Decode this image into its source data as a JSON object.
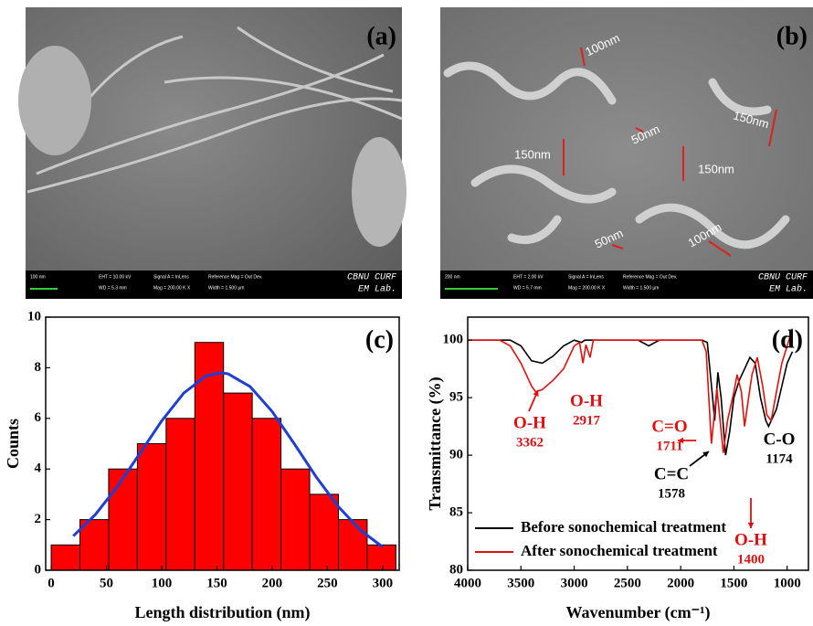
{
  "images": [
    {
      "label": "(a)",
      "scale": "100 nm",
      "info": [
        "EHT = 10.00 kV",
        "WD = 5.3 mm",
        "Signal A = InLens",
        "Mag = 200.00 K X",
        "Reference Mag = Out Dev.",
        "Width = 1.500 µm"
      ],
      "footer": [
        "CBNU CURF",
        "EM Lab."
      ]
    },
    {
      "label": "(b)",
      "scale": "200 nm",
      "info": [
        "EHT = 2.00 kV",
        "WD = 5.7 mm",
        "Signal A = InLens",
        "Mag = 200.00 K X",
        "Reference Mag = Out Dev.",
        "Width = 1.500 µm"
      ],
      "footer": [
        "CBNU CURF",
        "EM Lab."
      ],
      "annotations": [
        "100nm",
        "50nm",
        "150nm",
        "150nm",
        "150nm",
        "50nm",
        "100nm"
      ]
    }
  ],
  "chart_data": [
    {
      "type": "histogram",
      "label": "(c)",
      "x_label": "Length distribution (nm)",
      "y_label": "Counts",
      "bins": [
        0,
        26,
        52,
        78,
        104,
        130,
        156,
        182,
        208,
        234,
        260,
        286,
        312
      ],
      "values": [
        1,
        2,
        4,
        5,
        6,
        9,
        7,
        6,
        4,
        3,
        2,
        1
      ],
      "color": "#ff0000",
      "fit": {
        "color": "#1f3fd0",
        "x": [
          20,
          40,
          60,
          80,
          100,
          120,
          140,
          153,
          160,
          180,
          200,
          220,
          240,
          260,
          280,
          300
        ],
        "values": [
          1.35,
          2.2,
          3.31,
          4.6,
          5.9,
          7.0,
          7.67,
          7.8,
          7.76,
          7.26,
          6.27,
          5.0,
          3.68,
          2.51,
          1.58,
          0.92
        ]
      },
      "xlim": [
        -5,
        315
      ],
      "xticks": [
        0,
        50,
        100,
        150,
        200,
        250,
        300
      ],
      "ylim": [
        0,
        10
      ],
      "yticks": [
        0,
        2,
        4,
        6,
        8,
        10
      ]
    },
    {
      "type": "line",
      "label": "(d)",
      "x_label": "Wavenumber (cm⁻¹)",
      "y_label": "Transmittance (%)",
      "xlim": [
        4000,
        800
      ],
      "xticks": [
        4000,
        3500,
        3000,
        2500,
        2000,
        1500,
        1000
      ],
      "ylim": [
        80,
        102
      ],
      "yticks": [
        80,
        85,
        90,
        95,
        100
      ],
      "legend": "lower left",
      "series": [
        {
          "name": "Before sonochemical treatment",
          "color": "#000000",
          "x": [
            4000,
            3600,
            3500,
            3400,
            3300,
            3200,
            3100,
            3000,
            2930,
            2900,
            2400,
            2300,
            2200,
            1800,
            1750,
            1700,
            1680,
            1650,
            1620,
            1578,
            1540,
            1500,
            1450,
            1400,
            1350,
            1300,
            1250,
            1200,
            1174,
            1100,
            1050,
            1000,
            950
          ],
          "values": [
            100,
            100,
            99.5,
            98.2,
            98,
            98.6,
            99.5,
            100,
            99.8,
            100,
            100,
            99.5,
            100,
            100,
            99.8,
            95,
            93,
            97.2,
            95,
            90,
            92,
            95,
            96.5,
            97.5,
            98.5,
            98,
            95,
            93,
            92.5,
            94,
            96,
            98,
            99
          ]
        },
        {
          "name": "After sonochemical treatment",
          "color": "#e01010",
          "x": [
            4000,
            3700,
            3600,
            3500,
            3400,
            3362,
            3300,
            3200,
            3100,
            3000,
            2950,
            2917,
            2890,
            2850,
            2820,
            1800,
            1760,
            1711,
            1690,
            1660,
            1630,
            1600,
            1560,
            1500,
            1470,
            1430,
            1400,
            1370,
            1330,
            1280,
            1230,
            1190,
            1150,
            1100,
            1050,
            1000,
            950
          ],
          "values": [
            100,
            100,
            99.5,
            98,
            96,
            95.5,
            95.7,
            96.5,
            97.5,
            99.5,
            99.8,
            98,
            99.6,
            98.5,
            100,
            100,
            99,
            91,
            93,
            95.8,
            93,
            90.2,
            93,
            95.5,
            97,
            95.5,
            92.5,
            94.5,
            97,
            98.5,
            96,
            93.5,
            93,
            95.5,
            98,
            99.5,
            101
          ]
        }
      ],
      "annotations": [
        {
          "text": [
            "O-H",
            "3362"
          ],
          "color": "#e01010"
        },
        {
          "text": [
            "O-H",
            "2917"
          ],
          "color": "#e01010"
        },
        {
          "text": [
            "C=O",
            "1711"
          ],
          "color": "#e01010"
        },
        {
          "text": [
            "C=C",
            "1578"
          ],
          "color": "#000000"
        },
        {
          "text": [
            "O-H",
            "1400"
          ],
          "color": "#e01010"
        },
        {
          "text": [
            "C-O",
            "1174"
          ],
          "color": "#000000"
        }
      ]
    }
  ]
}
